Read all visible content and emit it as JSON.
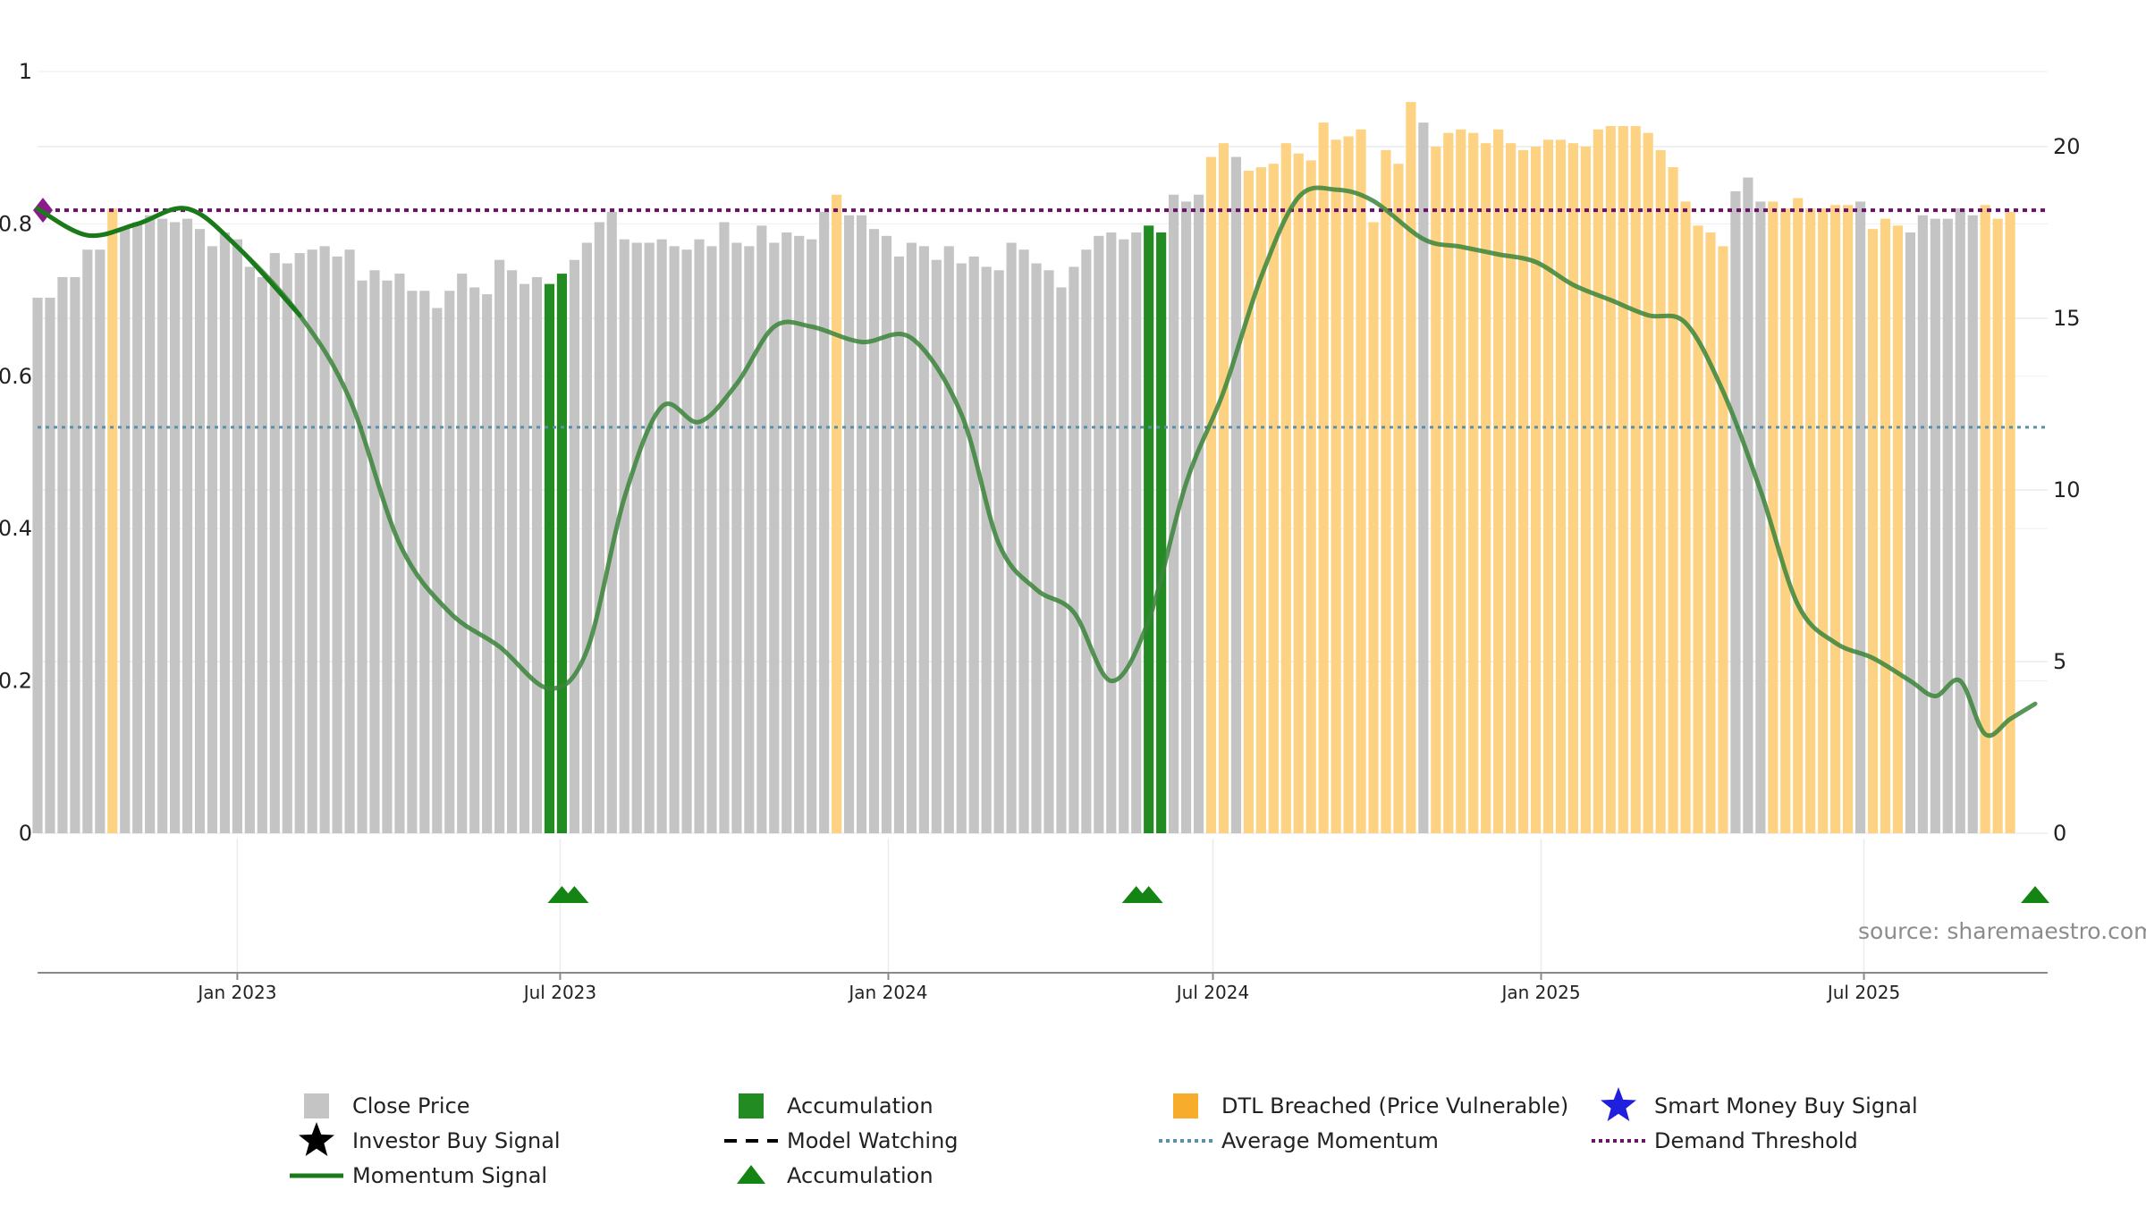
{
  "chart_data": {
    "type": "bar",
    "source": "source: sharemaestro.com",
    "colors": {
      "close": "#c4c4c4",
      "accumulation": "#228b22",
      "dtl": "#fdd283",
      "momentum": "#3b853b",
      "momentum_start": "#1a7a1a",
      "momentum_dtl": "#6f9a1e",
      "average": "#5b8fa8",
      "threshold": "#6b0f6b",
      "triangle": "#148414",
      "diamond": "#8b1a8b",
      "star": "#1f1fdd"
    },
    "y_left": {
      "range": [
        0,
        1
      ],
      "ticks": [
        "0",
        "0.2",
        "0.4",
        "0.6",
        "0.8",
        "1"
      ]
    },
    "y_right": {
      "range": [
        0,
        20
      ],
      "ticks": [
        "0",
        "5",
        "10",
        "15",
        "20"
      ]
    },
    "x_axis": {
      "start": "2022-09-11",
      "end": "2025-10-12",
      "ticks": [
        {
          "date": "2023-01-01",
          "label": "Jan 2023"
        },
        {
          "date": "2023-07-01",
          "label": "Jul 2023"
        },
        {
          "date": "2024-01-01",
          "label": "Jan 2024"
        },
        {
          "date": "2024-07-01",
          "label": "Jul 2024"
        },
        {
          "date": "2025-01-01",
          "label": "Jan 2025"
        },
        {
          "date": "2025-07-01",
          "label": "Jul 2025"
        }
      ]
    },
    "bars": {
      "first_date": "2022-09-11",
      "interval": "week",
      "values": [
        15.6,
        15.6,
        16.2,
        16.2,
        17.0,
        17.0,
        18.2,
        17.6,
        17.8,
        18.0,
        17.9,
        17.8,
        17.9,
        17.6,
        17.1,
        17.5,
        17.3,
        16.5,
        16.2,
        16.9,
        16.6,
        16.9,
        17.0,
        17.1,
        16.8,
        17.0,
        16.1,
        16.4,
        16.1,
        16.3,
        15.8,
        15.8,
        15.3,
        15.8,
        16.3,
        15.9,
        15.7,
        16.7,
        16.4,
        16.0,
        16.2,
        16.0,
        16.3,
        16.7,
        17.2,
        17.8,
        18.1,
        17.3,
        17.2,
        17.2,
        17.3,
        17.1,
        17.0,
        17.3,
        17.1,
        17.8,
        17.2,
        17.1,
        17.7,
        17.2,
        17.5,
        17.4,
        17.3,
        18.1,
        18.6,
        18.0,
        18.0,
        17.6,
        17.4,
        16.8,
        17.2,
        17.1,
        16.7,
        17.1,
        16.6,
        16.8,
        16.5,
        16.4,
        17.2,
        17.0,
        16.6,
        16.4,
        15.9,
        16.5,
        17.0,
        17.4,
        17.5,
        17.3,
        17.5,
        17.7,
        17.5,
        18.6,
        18.4,
        18.6,
        19.7,
        20.1,
        19.7,
        19.3,
        19.4,
        19.5,
        20.1,
        19.8,
        19.6,
        20.7,
        20.2,
        20.3,
        20.5,
        17.8,
        19.9,
        19.5,
        21.3,
        20.7,
        20.0,
        20.4,
        20.5,
        20.4,
        20.1,
        20.5,
        20.1,
        19.9,
        20.0,
        20.2,
        20.2,
        20.1,
        20.0,
        20.5,
        20.6,
        20.6,
        20.6,
        20.4,
        19.9,
        19.4,
        18.4,
        17.7,
        17.5,
        17.1,
        18.7,
        19.1,
        18.4,
        18.4,
        18.2,
        18.5,
        18.2,
        18.2,
        18.3,
        18.3,
        18.4,
        17.6,
        17.9,
        17.7,
        17.5,
        18.0,
        17.9,
        17.9,
        18.2,
        18.0,
        18.3,
        17.9,
        18.1
      ],
      "status": [
        "c",
        "c",
        "c",
        "c",
        "c",
        "c",
        "d",
        "c",
        "c",
        "c",
        "c",
        "c",
        "c",
        "c",
        "c",
        "c",
        "c",
        "c",
        "c",
        "c",
        "c",
        "c",
        "c",
        "c",
        "c",
        "c",
        "c",
        "c",
        "c",
        "c",
        "c",
        "c",
        "c",
        "c",
        "c",
        "c",
        "c",
        "c",
        "c",
        "c",
        "c",
        "a",
        "a",
        "c",
        "c",
        "c",
        "c",
        "c",
        "c",
        "c",
        "c",
        "c",
        "c",
        "c",
        "c",
        "c",
        "c",
        "c",
        "c",
        "c",
        "c",
        "c",
        "c",
        "c",
        "d",
        "c",
        "c",
        "c",
        "c",
        "c",
        "c",
        "c",
        "c",
        "c",
        "c",
        "c",
        "c",
        "c",
        "c",
        "c",
        "c",
        "c",
        "c",
        "c",
        "c",
        "c",
        "c",
        "c",
        "c",
        "a",
        "a",
        "c",
        "c",
        "c",
        "d",
        "d",
        "c",
        "d",
        "d",
        "d",
        "d",
        "d",
        "d",
        "d",
        "d",
        "d",
        "d",
        "d",
        "d",
        "d",
        "d",
        "c",
        "d",
        "d",
        "d",
        "d",
        "d",
        "d",
        "d",
        "d",
        "d",
        "d",
        "d",
        "d",
        "d",
        "d",
        "d",
        "d",
        "d",
        "d",
        "d",
        "d",
        "d",
        "d",
        "d",
        "d",
        "c",
        "c",
        "c",
        "d",
        "d",
        "d",
        "d",
        "d",
        "d",
        "d",
        "c",
        "d",
        "d",
        "d",
        "c",
        "c",
        "c",
        "c",
        "c",
        "c",
        "d",
        "d",
        "d",
        "a",
        "c"
      ]
    },
    "momentum": {
      "x": [
        "2022-09-11",
        "2022-10-09",
        "2022-11-06",
        "2022-12-04",
        "2023-01-01",
        "2023-02-05",
        "2023-03-05",
        "2023-04-02",
        "2023-04-30",
        "2023-05-28",
        "2023-06-25",
        "2023-07-16",
        "2023-08-06",
        "2023-08-27",
        "2023-09-17",
        "2023-10-08",
        "2023-10-29",
        "2023-11-19",
        "2023-12-17",
        "2024-01-14",
        "2024-02-11",
        "2024-03-03",
        "2024-03-24",
        "2024-04-14",
        "2024-05-05",
        "2024-05-26",
        "2024-06-16",
        "2024-07-07",
        "2024-07-28",
        "2024-08-18",
        "2024-09-08",
        "2024-09-29",
        "2024-10-27",
        "2024-11-17",
        "2024-12-08",
        "2024-12-29",
        "2025-01-19",
        "2025-02-09",
        "2025-03-02",
        "2025-03-23",
        "2025-04-13",
        "2025-05-04",
        "2025-05-25",
        "2025-06-15",
        "2025-07-06",
        "2025-07-27",
        "2025-08-10",
        "2025-08-24",
        "2025-09-07",
        "2025-09-21",
        "2025-10-05"
      ],
      "y": [
        0.82,
        0.785,
        0.8,
        0.82,
        0.77,
        0.68,
        0.57,
        0.38,
        0.29,
        0.245,
        0.19,
        0.24,
        0.44,
        0.56,
        0.54,
        0.59,
        0.665,
        0.665,
        0.645,
        0.65,
        0.55,
        0.38,
        0.32,
        0.29,
        0.2,
        0.28,
        0.46,
        0.58,
        0.73,
        0.835,
        0.845,
        0.83,
        0.78,
        0.77,
        0.76,
        0.75,
        0.72,
        0.7,
        0.68,
        0.67,
        0.58,
        0.45,
        0.3,
        0.25,
        0.23,
        0.2,
        0.18,
        0.2,
        0.13,
        0.15,
        0.17
      ]
    },
    "average_momentum": 0.533,
    "demand_threshold": 0.818,
    "accumulation_markers": [
      "2023-07-02",
      "2023-07-09",
      "2024-05-19",
      "2024-05-26",
      "2025-10-05"
    ],
    "legend": [
      [
        "Close Price",
        "Accumulation",
        "DTL Breached (Price Vulnerable)",
        "Smart Money Buy Signal"
      ],
      [
        "Investor Buy Signal",
        "Model Watching",
        "Average Momentum",
        "Demand Threshold"
      ],
      [
        "Momentum Signal",
        "Accumulation"
      ]
    ],
    "legend_symbols": [
      [
        "gray-square",
        "green-square",
        "orange-square",
        "blue-star"
      ],
      [
        "black-star",
        "black-dash",
        "blue-dotted",
        "purple-dotted"
      ],
      [
        "green-line",
        "green-triangle"
      ]
    ]
  }
}
